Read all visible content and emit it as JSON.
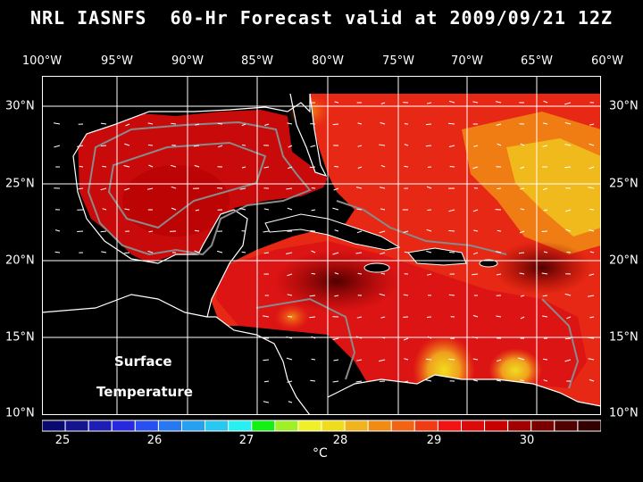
{
  "title": "NRL IASNFS  60-Hr Forecast valid at 2009/09/21 12Z",
  "lon_labels": [
    "100°W",
    "95°W",
    "90°W",
    "85°W",
    "80°W",
    "75°W",
    "70°W",
    "65°W",
    "60°W"
  ],
  "lat_labels": [
    "30°N",
    "25°N",
    "20°N",
    "15°N",
    "10°N"
  ],
  "overlay": {
    "line1": "Surface",
    "line2": "Temperature"
  },
  "colorbar": {
    "labels": [
      "25",
      "26",
      "27",
      "28",
      "29",
      "30"
    ],
    "unit": "°C",
    "colors": [
      "#0a0a6e",
      "#14148c",
      "#1e1eb4",
      "#2828dc",
      "#2850f0",
      "#2878f0",
      "#28a0f0",
      "#28c8f0",
      "#28f0f0",
      "#14f014",
      "#a0f028",
      "#f0f028",
      "#f0dc1e",
      "#f0b41e",
      "#f08c14",
      "#f06414",
      "#f03c14",
      "#f01414",
      "#dc0a0a",
      "#c80000",
      "#a00000",
      "#780000",
      "#500000",
      "#320000"
    ]
  },
  "colors": {
    "land": "#000000",
    "grid": "#ffffff",
    "coast": "#ffffff",
    "bathy": "#808080"
  }
}
